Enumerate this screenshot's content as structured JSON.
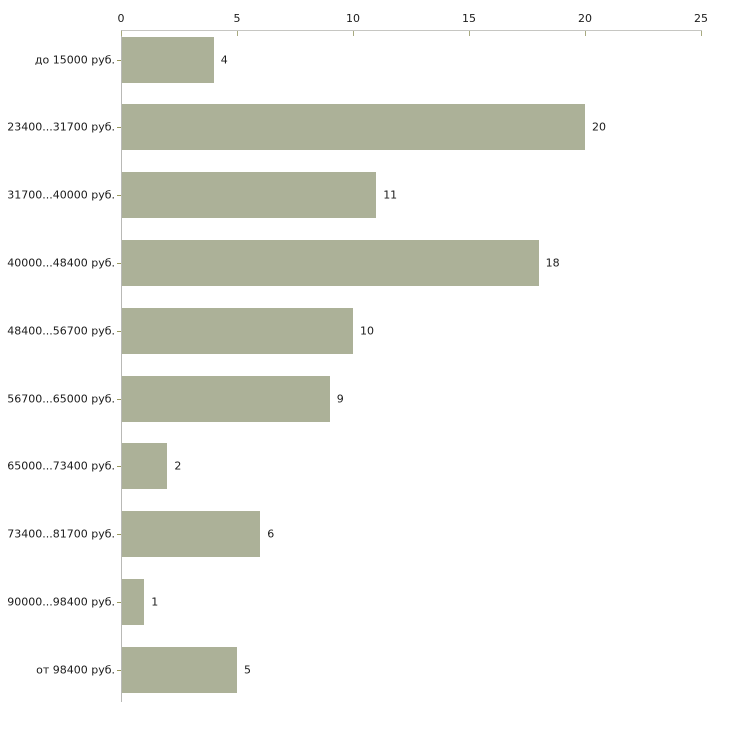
{
  "chart_data": {
    "type": "bar",
    "orientation": "horizontal",
    "title": "",
    "xlabel": "",
    "ylabel": "",
    "categories": [
      "до 15000 руб.",
      "23400...31700 руб.",
      "31700...40000 руб.",
      "40000...48400 руб.",
      "48400...56700 руб.",
      "56700...65000 руб.",
      "65000...73400 руб.",
      "73400...81700 руб.",
      "90000...98400 руб.",
      "от 98400 руб."
    ],
    "values": [
      4,
      20,
      11,
      18,
      10,
      9,
      2,
      6,
      1,
      5
    ],
    "value_labels_shown": true,
    "xlim": [
      0,
      25
    ],
    "x_ticks": [
      0,
      5,
      10,
      15,
      20,
      25
    ],
    "x_axis_position": "top",
    "grid": false,
    "legend": null,
    "colors": {
      "bar_fill": "#acb198",
      "x_axis_line": "#c6c6c2",
      "y_axis_line": "#b9b9b6",
      "x_tick_mark": "#a8aa80",
      "category_tick_mark": "#99995e",
      "text": "#1b1b1b",
      "background": "#ffffff"
    }
  }
}
